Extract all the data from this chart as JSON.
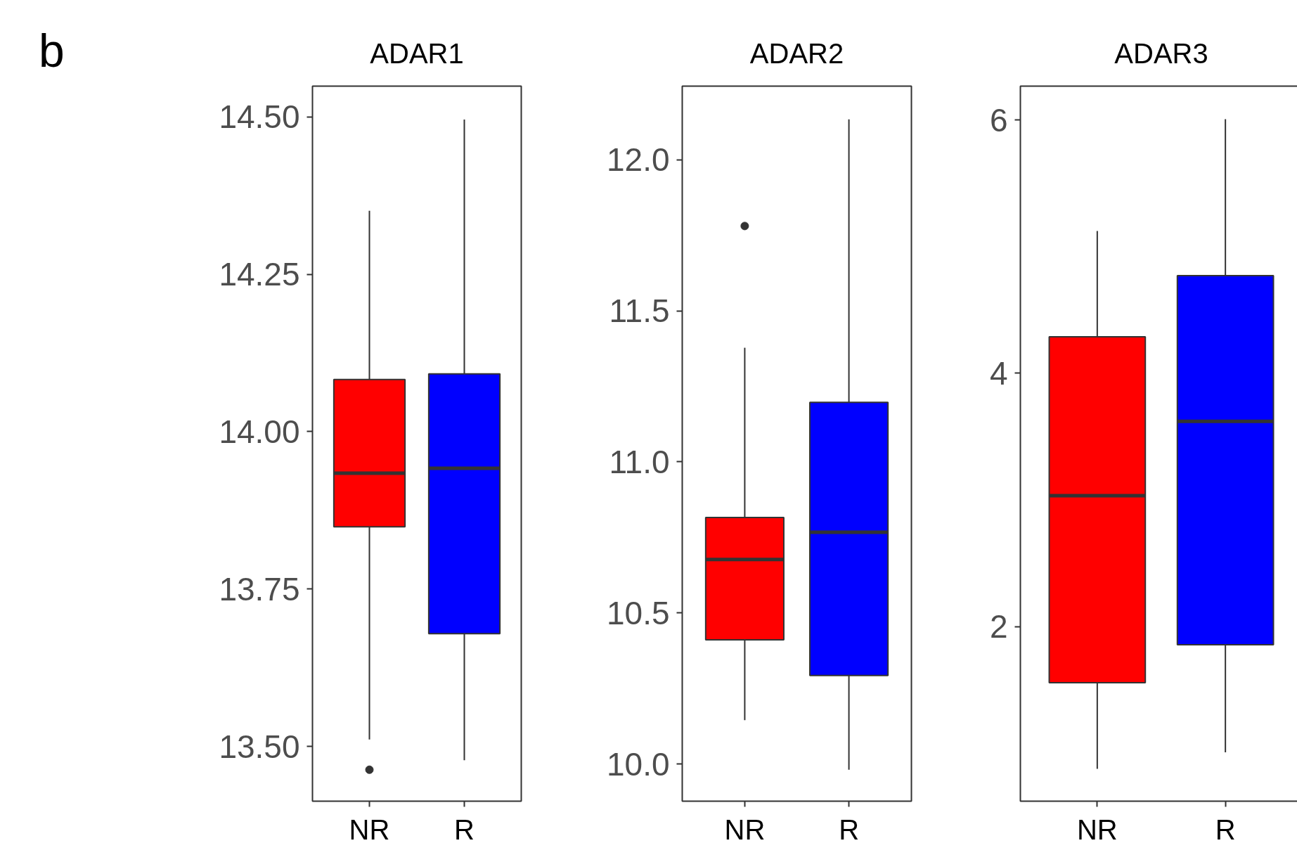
{
  "chart_data": [
    {
      "type": "box",
      "title": "ADAR1",
      "categories": [
        "NR",
        "R"
      ],
      "colors": [
        "#ff0000",
        "#0000ff"
      ],
      "annotations": [
        "b"
      ],
      "boxes": [
        {
          "low": 13.511,
          "q1": 13.849,
          "median": 13.934,
          "q3": 14.083,
          "high": 14.351,
          "outliers": [
            13.463
          ]
        },
        {
          "low": 13.478,
          "q1": 13.679,
          "median": 13.942,
          "q3": 14.092,
          "high": 14.496
        }
      ],
      "ylim": [
        13.413,
        14.549
      ],
      "yticks": [
        {
          "value": 13.5,
          "label": "13.50"
        },
        13.75,
        {
          "value": 14.0,
          "label": "14.00"
        },
        14.25,
        {
          "value": 14.5,
          "label": "14.50"
        }
      ]
    },
    {
      "type": "box",
      "title": "ADAR2",
      "categories": [
        "NR",
        "R"
      ],
      "colors": [
        "#ff0000",
        "#0000ff"
      ],
      "boxes": [
        {
          "low": 10.145,
          "q1": 10.411,
          "median": 10.677,
          "q3": 10.816,
          "high": 11.378,
          "outliers": [
            11.781
          ]
        },
        {
          "low": 9.981,
          "q1": 10.293,
          "median": 10.767,
          "q3": 11.197,
          "high": 12.134
        }
      ],
      "ylim": [
        9.877,
        12.244
      ],
      "yticks": [
        {
          "value": 10.0,
          "label": "10.0"
        },
        10.5,
        {
          "value": 11.0,
          "label": "11.0"
        },
        11.5,
        {
          "value": 12.0,
          "label": "12.0"
        }
      ]
    },
    {
      "type": "box",
      "title": "ADAR3",
      "categories": [
        "NR",
        "R"
      ],
      "colors": [
        "#ff0000",
        "#0000ff"
      ],
      "boxes": [
        {
          "low": 0.876,
          "q1": 1.556,
          "median": 3.033,
          "q3": 4.288,
          "high": 5.124
        },
        {
          "low": 1.007,
          "q1": 1.856,
          "median": 3.621,
          "q3": 4.771,
          "high": 6.007
        }
      ],
      "ylim": [
        0.621,
        6.268
      ],
      "yticks": [
        2,
        4,
        6
      ]
    }
  ]
}
